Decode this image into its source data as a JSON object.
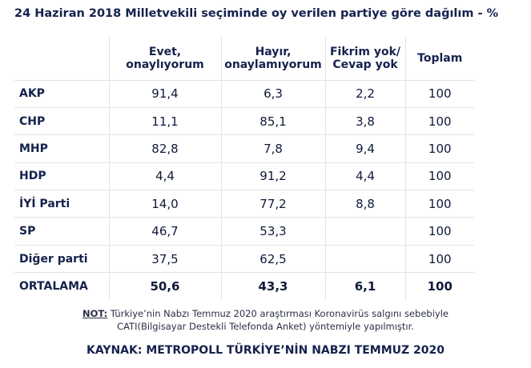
{
  "title": "24 Haziran 2018 Milletvekili seçiminde oy verilen partiye göre dağılım - %",
  "chart_data": {
    "type": "table",
    "columns": [
      {
        "line1": "Evet,",
        "line2": "onaylıyorum"
      },
      {
        "line1": "Hayır,",
        "line2": "onaylamıyorum"
      },
      {
        "line1": "Fikrim yok/",
        "line2": "Cevap yok"
      },
      {
        "line1": "Toplam",
        "line2": ""
      }
    ],
    "rows": [
      {
        "party": "AKP",
        "values": [
          "91,4",
          "6,3",
          "2,2",
          "100"
        ]
      },
      {
        "party": "CHP",
        "values": [
          "11,1",
          "85,1",
          "3,8",
          "100"
        ]
      },
      {
        "party": "MHP",
        "values": [
          "82,8",
          "7,8",
          "9,4",
          "100"
        ]
      },
      {
        "party": "HDP",
        "values": [
          "4,4",
          "91,2",
          "4,4",
          "100"
        ]
      },
      {
        "party": "İYİ Parti",
        "values": [
          "14,0",
          "77,2",
          "8,8",
          "100"
        ]
      },
      {
        "party": "SP",
        "values": [
          "46,7",
          "53,3",
          "",
          "100"
        ]
      },
      {
        "party": "Diğer parti",
        "values": [
          "37,5",
          "62,5",
          "",
          "100"
        ]
      },
      {
        "party": "ORTALAMA",
        "values": [
          "50,6",
          "43,3",
          "6,1",
          "100"
        ]
      }
    ]
  },
  "note": {
    "key": "NOT:",
    "line1": " Türkiye’nin Nabzı Temmuz 2020 araştırması Koronavirüs salgını sebebiyle",
    "line2": "CATI(Bilgisayar Destekli Telefonda Anket) yöntemiyle yapılmıştır."
  },
  "source": "KAYNAK: METROPOLL TÜRKİYE’NİN NABZI TEMMUZ 2020"
}
